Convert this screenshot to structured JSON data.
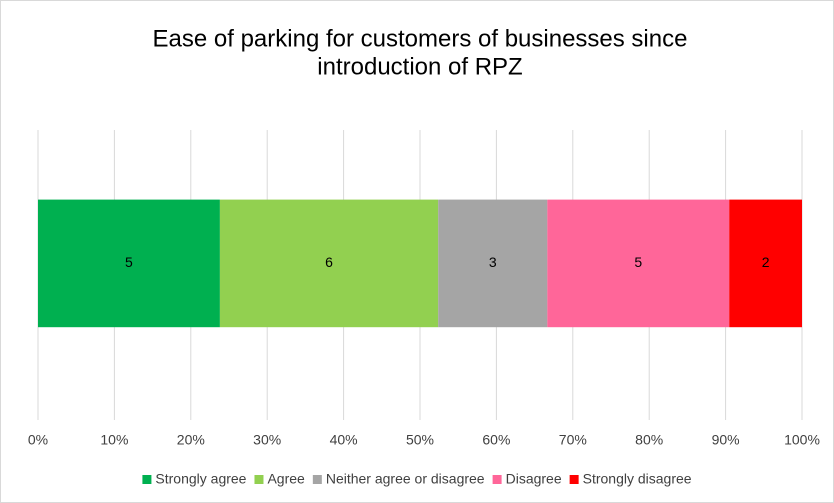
{
  "chart_data": {
    "type": "bar",
    "orientation": "horizontal",
    "stack": "percent",
    "title": [
      "Ease of parking for customers of businesses since",
      "introduction of RPZ"
    ],
    "categories": [
      null
    ],
    "series": [
      {
        "name": "Strongly agree",
        "color": "#00b050",
        "values": [
          5
        ]
      },
      {
        "name": "Agree",
        "color": "#92d050",
        "values": [
          6
        ]
      },
      {
        "name": "Neither agree or disagree",
        "color": "#a5a5a5",
        "values": [
          3
        ]
      },
      {
        "name": "Disagree",
        "color": "#ff6699",
        "values": [
          5
        ]
      },
      {
        "name": "Strongly disagree",
        "color": "#ff0000",
        "values": [
          2
        ]
      }
    ],
    "xlim": [
      0,
      100
    ],
    "xticks": [
      {
        "value": 0,
        "label": "0%"
      },
      {
        "value": 10,
        "label": "10%"
      },
      {
        "value": 20,
        "label": "20%"
      },
      {
        "value": 30,
        "label": "30%"
      },
      {
        "value": 40,
        "label": "40%"
      },
      {
        "value": 50,
        "label": "50%"
      },
      {
        "value": 60,
        "label": "60%"
      },
      {
        "value": 70,
        "label": "70%"
      },
      {
        "value": 80,
        "label": "80%"
      },
      {
        "value": 90,
        "label": "90%"
      },
      {
        "value": 100,
        "label": "100%"
      }
    ],
    "grid": true,
    "legend": "bottom"
  }
}
